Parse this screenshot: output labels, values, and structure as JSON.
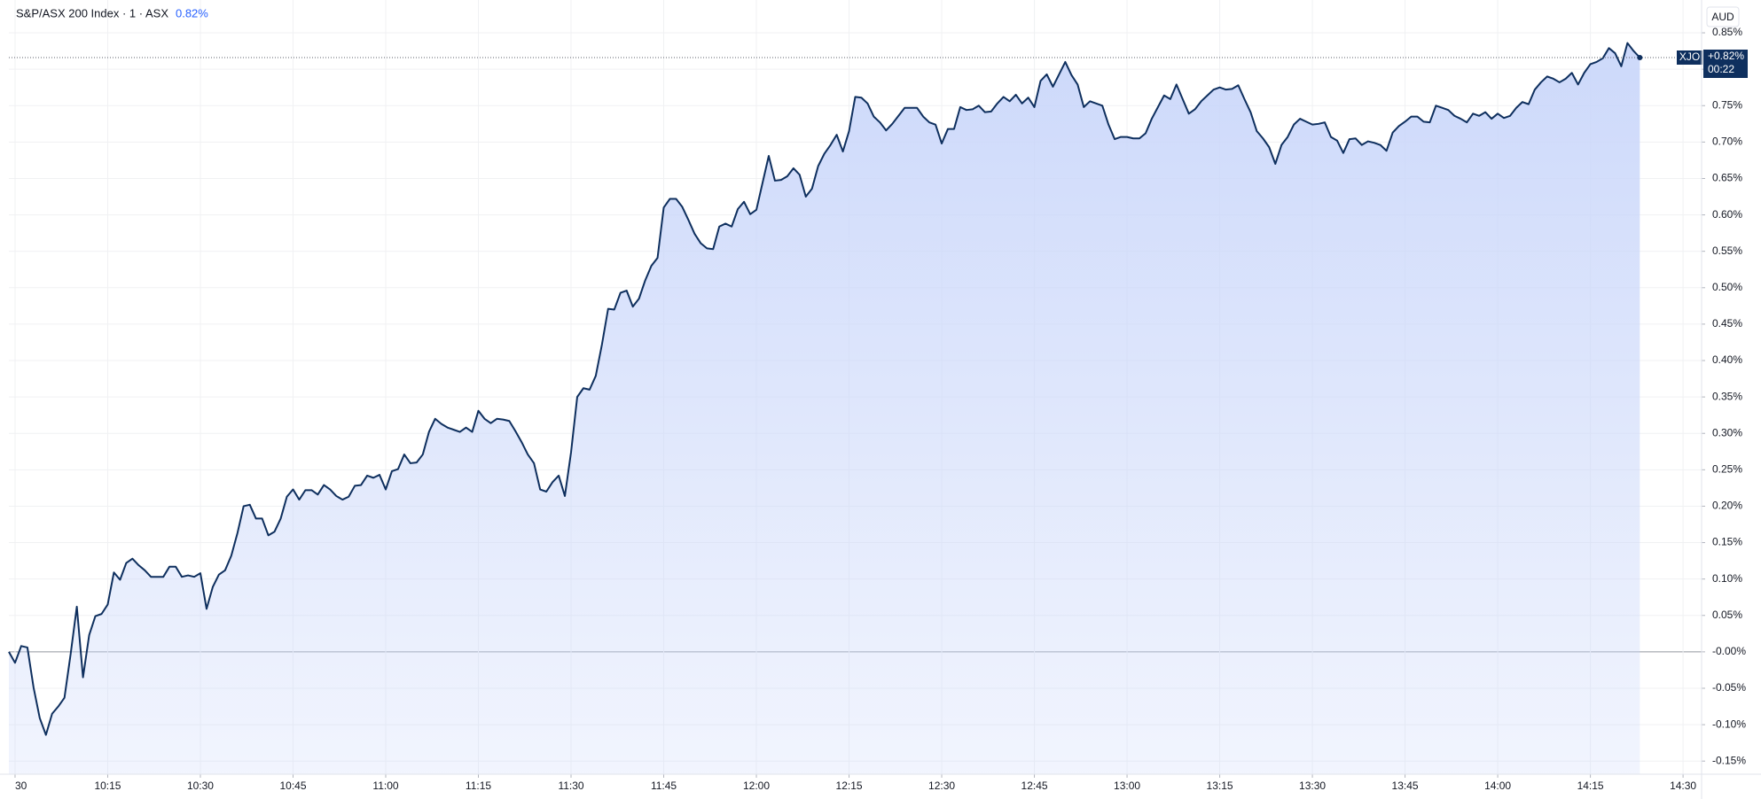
{
  "chart_data": {
    "type": "line",
    "title": "S&P/ASX 200 Index · 1 · ASX",
    "change_label": "0.82%",
    "currency": "AUD",
    "symbol": "XJO",
    "price_label": "+0.82%",
    "countdown": "00:22",
    "grid": true,
    "xlim": [
      599,
      873
    ],
    "ylim": [
      -0.168,
      0.861
    ],
    "xticks": [
      {
        "value": 600,
        "label": "30"
      },
      {
        "value": 615,
        "label": "10:15"
      },
      {
        "value": 630,
        "label": "10:30"
      },
      {
        "value": 645,
        "label": "10:45"
      },
      {
        "value": 660,
        "label": "11:00"
      },
      {
        "value": 675,
        "label": "11:15"
      },
      {
        "value": 690,
        "label": "11:30"
      },
      {
        "value": 705,
        "label": "11:45"
      },
      {
        "value": 720,
        "label": "12:00"
      },
      {
        "value": 735,
        "label": "12:15"
      },
      {
        "value": 750,
        "label": "12:30"
      },
      {
        "value": 765,
        "label": "12:45"
      },
      {
        "value": 780,
        "label": "13:00"
      },
      {
        "value": 795,
        "label": "13:15"
      },
      {
        "value": 810,
        "label": "13:30"
      },
      {
        "value": 825,
        "label": "13:45"
      },
      {
        "value": 840,
        "label": "14:00"
      },
      {
        "value": 855,
        "label": "14:15"
      },
      {
        "value": 870,
        "label": "14:30"
      }
    ],
    "yticks": [
      {
        "value": -0.15,
        "label": "-0.15%"
      },
      {
        "value": -0.1,
        "label": "-0.10%"
      },
      {
        "value": -0.05,
        "label": "-0.05%"
      },
      {
        "value": 0,
        "label": "-0.00%"
      },
      {
        "value": 0.05,
        "label": "0.05%"
      },
      {
        "value": 0.1,
        "label": "0.10%"
      },
      {
        "value": 0.15,
        "label": "0.15%"
      },
      {
        "value": 0.2,
        "label": "0.20%"
      },
      {
        "value": 0.25,
        "label": "0.25%"
      },
      {
        "value": 0.3,
        "label": "0.30%"
      },
      {
        "value": 0.35,
        "label": "0.35%"
      },
      {
        "value": 0.4,
        "label": "0.40%"
      },
      {
        "value": 0.45,
        "label": "0.45%"
      },
      {
        "value": 0.5,
        "label": "0.50%"
      },
      {
        "value": 0.55,
        "label": "0.55%"
      },
      {
        "value": 0.6,
        "label": "0.60%"
      },
      {
        "value": 0.65,
        "label": "0.65%"
      },
      {
        "value": 0.7,
        "label": "0.70%"
      },
      {
        "value": 0.75,
        "label": "0.75%"
      },
      {
        "value": 0.8,
        "label": "0.80%"
      },
      {
        "value": 0.85,
        "label": "0.85%"
      }
    ],
    "x": [
      599,
      600,
      601,
      602,
      603,
      604,
      605,
      606,
      607,
      608,
      609,
      610,
      611,
      612,
      613,
      614,
      615,
      616,
      617,
      618,
      619,
      620,
      621,
      622,
      623,
      624,
      625,
      626,
      627,
      628,
      629,
      630,
      631,
      632,
      633,
      634,
      635,
      636,
      637,
      638,
      639,
      640,
      641,
      642,
      643,
      644,
      645,
      646,
      647,
      648,
      649,
      650,
      651,
      652,
      653,
      654,
      655,
      656,
      657,
      658,
      659,
      660,
      661,
      662,
      663,
      664,
      665,
      666,
      667,
      668,
      669,
      670,
      671,
      672,
      673,
      674,
      675,
      676,
      677,
      678,
      679,
      680,
      681,
      682,
      683,
      684,
      685,
      686,
      687,
      688,
      689,
      690,
      691,
      692,
      693,
      694,
      695,
      696,
      697,
      698,
      699,
      700,
      701,
      702,
      703,
      704,
      705,
      706,
      707,
      708,
      709,
      710,
      711,
      712,
      713,
      714,
      715,
      716,
      717,
      718,
      719,
      720,
      721,
      722,
      723,
      724,
      725,
      726,
      727,
      728,
      729,
      730,
      731,
      732,
      733,
      734,
      735,
      736,
      737,
      738,
      739,
      740,
      741,
      742,
      743,
      744,
      745,
      746,
      747,
      748,
      749,
      750,
      751,
      752,
      753,
      754,
      755,
      756,
      757,
      758,
      759,
      760,
      761,
      762,
      763,
      764,
      765,
      766,
      767,
      768,
      769,
      770,
      771,
      772,
      773,
      774,
      775,
      776,
      777,
      778,
      779,
      780,
      781,
      782,
      783,
      784,
      785,
      786,
      787,
      788,
      789,
      790,
      791,
      792,
      793,
      794,
      795,
      796,
      797,
      798,
      799,
      800,
      801,
      802,
      803,
      804,
      805,
      806,
      807,
      808,
      809,
      810,
      811,
      812,
      813,
      814,
      815,
      816,
      817,
      818,
      819,
      820,
      821,
      822,
      823,
      824,
      825,
      826,
      827,
      828,
      829,
      830,
      831,
      832,
      833,
      834,
      835,
      836,
      837,
      838,
      839,
      840,
      841,
      842,
      843,
      844,
      845,
      846,
      847,
      848,
      849,
      850,
      851,
      852,
      853,
      854,
      855,
      856,
      857,
      858,
      859,
      860,
      861,
      862,
      863
    ],
    "area_color": "#c9d6fa",
    "series": [
      {
        "name": "XJO",
        "color": "#0e2f5e",
        "values": [
          0,
          -0.015,
          0.008,
          0.006,
          -0.049,
          -0.091,
          -0.114,
          -0.085,
          -0.075,
          -0.063,
          -0.003,
          0.062,
          -0.035,
          0.023,
          0.049,
          0.052,
          0.065,
          0.109,
          0.099,
          0.122,
          0.128,
          0.119,
          0.112,
          0.103,
          0.103,
          0.103,
          0.117,
          0.117,
          0.103,
          0.105,
          0.103,
          0.108,
          0.059,
          0.089,
          0.106,
          0.112,
          0.132,
          0.163,
          0.2,
          0.202,
          0.183,
          0.183,
          0.16,
          0.165,
          0.183,
          0.213,
          0.223,
          0.209,
          0.222,
          0.222,
          0.216,
          0.229,
          0.223,
          0.214,
          0.209,
          0.213,
          0.228,
          0.229,
          0.242,
          0.239,
          0.243,
          0.223,
          0.248,
          0.251,
          0.271,
          0.259,
          0.26,
          0.271,
          0.302,
          0.32,
          0.313,
          0.308,
          0.305,
          0.302,
          0.308,
          0.302,
          0.331,
          0.32,
          0.314,
          0.32,
          0.319,
          0.317,
          0.303,
          0.288,
          0.271,
          0.259,
          0.223,
          0.22,
          0.233,
          0.242,
          0.214,
          0.274,
          0.35,
          0.362,
          0.36,
          0.379,
          0.422,
          0.471,
          0.47,
          0.493,
          0.496,
          0.474,
          0.485,
          0.51,
          0.53,
          0.541,
          0.61,
          0.622,
          0.622,
          0.611,
          0.593,
          0.574,
          0.561,
          0.554,
          0.553,
          0.584,
          0.588,
          0.584,
          0.608,
          0.618,
          0.601,
          0.607,
          0.644,
          0.681,
          0.647,
          0.648,
          0.653,
          0.664,
          0.655,
          0.625,
          0.636,
          0.667,
          0.684,
          0.696,
          0.71,
          0.687,
          0.715,
          0.762,
          0.761,
          0.753,
          0.735,
          0.727,
          0.716,
          0.725,
          0.736,
          0.747,
          0.747,
          0.747,
          0.735,
          0.727,
          0.724,
          0.698,
          0.718,
          0.718,
          0.748,
          0.744,
          0.745,
          0.75,
          0.741,
          0.742,
          0.753,
          0.762,
          0.756,
          0.765,
          0.753,
          0.761,
          0.748,
          0.784,
          0.793,
          0.776,
          0.793,
          0.81,
          0.792,
          0.779,
          0.748,
          0.756,
          0.753,
          0.75,
          0.724,
          0.704,
          0.707,
          0.707,
          0.705,
          0.705,
          0.712,
          0.732,
          0.748,
          0.764,
          0.759,
          0.779,
          0.759,
          0.739,
          0.745,
          0.756,
          0.764,
          0.772,
          0.775,
          0.772,
          0.773,
          0.778,
          0.759,
          0.741,
          0.715,
          0.705,
          0.693,
          0.67,
          0.696,
          0.707,
          0.724,
          0.732,
          0.728,
          0.724,
          0.725,
          0.727,
          0.707,
          0.702,
          0.685,
          0.704,
          0.705,
          0.696,
          0.701,
          0.699,
          0.696,
          0.688,
          0.713,
          0.722,
          0.728,
          0.735,
          0.735,
          0.728,
          0.727,
          0.75,
          0.747,
          0.744,
          0.736,
          0.732,
          0.727,
          0.739,
          0.736,
          0.741,
          0.732,
          0.739,
          0.733,
          0.736,
          0.747,
          0.755,
          0.752,
          0.772,
          0.782,
          0.79,
          0.787,
          0.782,
          0.787,
          0.795,
          0.779,
          0.795,
          0.807,
          0.81,
          0.815,
          0.829,
          0.822,
          0.804,
          0.836,
          0.825,
          0.816
        ]
      }
    ]
  }
}
